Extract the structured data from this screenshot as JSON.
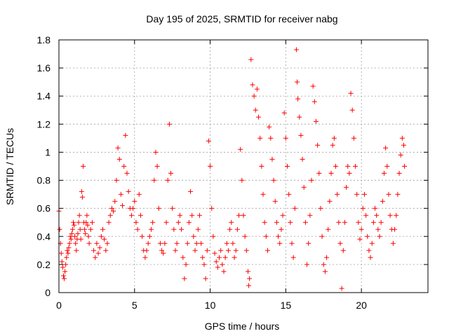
{
  "chart_data": {
    "type": "scatter",
    "title": "Day 195 of 2025, SRMTID for receiver nabg",
    "xlabel": "GPS time / hours",
    "ylabel": "SRMTID / TECUs",
    "xlim": [
      0,
      24.4
    ],
    "ylim": [
      0,
      1.8
    ],
    "xticks": [
      0,
      5,
      10,
      15,
      20
    ],
    "xtick_labels": [
      "0",
      "5",
      "10",
      "15",
      "20"
    ],
    "yticks": [
      0,
      0.2,
      0.4,
      0.6,
      0.8,
      1,
      1.2,
      1.4,
      1.6,
      1.8
    ],
    "ytick_labels": [
      "0",
      "0.2",
      "0.4",
      "0.6",
      "0.8",
      "1",
      "1.2",
      "1.4",
      "1.6",
      "1.8"
    ],
    "grid": true,
    "marker": "+",
    "color": "#ff0000",
    "series": [
      {
        "name": "SRMTID",
        "points": [
          [
            0.0,
            0.58
          ],
          [
            0.05,
            0.45
          ],
          [
            0.1,
            0.35
          ],
          [
            0.15,
            0.28
          ],
          [
            0.2,
            0.22
          ],
          [
            0.25,
            0.18
          ],
          [
            0.3,
            0.12
          ],
          [
            0.35,
            0.1
          ],
          [
            0.4,
            0.15
          ],
          [
            0.45,
            0.2
          ],
          [
            0.5,
            0.25
          ],
          [
            0.55,
            0.3
          ],
          [
            0.6,
            0.28
          ],
          [
            0.65,
            0.32
          ],
          [
            0.7,
            0.35
          ],
          [
            0.75,
            0.4
          ],
          [
            0.8,
            0.38
          ],
          [
            0.85,
            0.42
          ],
          [
            0.9,
            0.45
          ],
          [
            0.95,
            0.5
          ],
          [
            1.0,
            0.48
          ],
          [
            1.05,
            0.4
          ],
          [
            1.1,
            0.35
          ],
          [
            1.15,
            0.3
          ],
          [
            1.2,
            0.38
          ],
          [
            1.25,
            0.42
          ],
          [
            1.3,
            0.5
          ],
          [
            1.35,
            0.55
          ],
          [
            1.4,
            0.45
          ],
          [
            1.45,
            0.38
          ],
          [
            1.5,
            0.72
          ],
          [
            1.55,
            0.68
          ],
          [
            1.6,
            0.9
          ],
          [
            1.65,
            0.5
          ],
          [
            1.7,
            0.45
          ],
          [
            1.75,
            0.42
          ],
          [
            1.8,
            0.5
          ],
          [
            1.85,
            0.55
          ],
          [
            1.9,
            0.48
          ],
          [
            1.95,
            0.4
          ],
          [
            2.0,
            0.35
          ],
          [
            2.1,
            0.45
          ],
          [
            2.2,
            0.5
          ],
          [
            2.3,
            0.3
          ],
          [
            2.4,
            0.25
          ],
          [
            2.5,
            0.35
          ],
          [
            2.6,
            0.28
          ],
          [
            2.7,
            0.32
          ],
          [
            2.8,
            0.4
          ],
          [
            2.9,
            0.45
          ],
          [
            3.0,
            0.38
          ],
          [
            3.1,
            0.3
          ],
          [
            3.2,
            0.35
          ],
          [
            3.3,
            0.5
          ],
          [
            3.4,
            0.55
          ],
          [
            3.5,
            0.6
          ],
          [
            3.6,
            0.58
          ],
          [
            3.7,
            0.65
          ],
          [
            3.8,
            0.8
          ],
          [
            3.9,
            1.03
          ],
          [
            4.0,
            0.95
          ],
          [
            4.1,
            0.7
          ],
          [
            4.2,
            0.62
          ],
          [
            4.3,
            0.9
          ],
          [
            4.4,
            1.12
          ],
          [
            4.5,
            0.85
          ],
          [
            4.6,
            0.72
          ],
          [
            4.7,
            0.6
          ],
          [
            4.8,
            0.55
          ],
          [
            4.9,
            0.6
          ],
          [
            5.0,
            0.65
          ],
          [
            5.1,
            0.5
          ],
          [
            5.2,
            0.45
          ],
          [
            5.3,
            0.7
          ],
          [
            5.4,
            0.55
          ],
          [
            5.5,
            0.4
          ],
          [
            5.6,
            0.3
          ],
          [
            5.7,
            0.25
          ],
          [
            5.8,
            0.3
          ],
          [
            5.9,
            0.35
          ],
          [
            6.0,
            0.4
          ],
          [
            6.1,
            0.45
          ],
          [
            6.2,
            0.5
          ],
          [
            6.3,
            0.8
          ],
          [
            6.4,
            1.0
          ],
          [
            6.5,
            0.9
          ],
          [
            6.6,
            0.6
          ],
          [
            6.7,
            0.35
          ],
          [
            6.8,
            0.3
          ],
          [
            6.9,
            0.28
          ],
          [
            7.0,
            0.35
          ],
          [
            7.1,
            0.5
          ],
          [
            7.2,
            0.8
          ],
          [
            7.3,
            1.2
          ],
          [
            7.4,
            0.85
          ],
          [
            7.5,
            0.6
          ],
          [
            7.6,
            0.45
          ],
          [
            7.7,
            0.3
          ],
          [
            7.8,
            0.35
          ],
          [
            7.9,
            0.5
          ],
          [
            8.0,
            0.55
          ],
          [
            8.1,
            0.45
          ],
          [
            8.2,
            0.25
          ],
          [
            8.3,
            0.1
          ],
          [
            8.4,
            0.2
          ],
          [
            8.5,
            0.35
          ],
          [
            8.6,
            0.5
          ],
          [
            8.7,
            0.72
          ],
          [
            8.8,
            0.55
          ],
          [
            8.9,
            0.4
          ],
          [
            9.0,
            0.3
          ],
          [
            9.1,
            0.35
          ],
          [
            9.2,
            0.45
          ],
          [
            9.3,
            0.55
          ],
          [
            9.4,
            0.35
          ],
          [
            9.5,
            0.25
          ],
          [
            9.6,
            0.2
          ],
          [
            9.7,
            0.1
          ],
          [
            9.8,
            0.3
          ],
          [
            9.9,
            1.08
          ],
          [
            10.0,
            0.9
          ],
          [
            10.1,
            0.6
          ],
          [
            10.2,
            0.4
          ],
          [
            10.3,
            0.28
          ],
          [
            10.4,
            0.22
          ],
          [
            10.5,
            0.18
          ],
          [
            10.6,
            0.25
          ],
          [
            10.7,
            0.3
          ],
          [
            10.8,
            0.2
          ],
          [
            10.9,
            0.15
          ],
          [
            11.0,
            0.25
          ],
          [
            11.1,
            0.35
          ],
          [
            11.2,
            0.3
          ],
          [
            11.3,
            0.45
          ],
          [
            11.4,
            0.5
          ],
          [
            11.5,
            0.35
          ],
          [
            11.6,
            0.25
          ],
          [
            11.7,
            0.3
          ],
          [
            11.8,
            0.45
          ],
          [
            11.9,
            0.55
          ],
          [
            12.0,
            1.02
          ],
          [
            12.1,
            0.8
          ],
          [
            12.2,
            0.55
          ],
          [
            12.3,
            0.4
          ],
          [
            12.4,
            0.3
          ],
          [
            12.5,
            0.15
          ],
          [
            12.55,
            0.05
          ],
          [
            12.6,
            0.1
          ],
          [
            12.7,
            1.66
          ],
          [
            12.8,
            1.48
          ],
          [
            12.9,
            1.4
          ],
          [
            13.0,
            1.3
          ],
          [
            13.1,
            1.45
          ],
          [
            13.2,
            1.25
          ],
          [
            13.3,
            1.1
          ],
          [
            13.4,
            0.9
          ],
          [
            13.5,
            0.7
          ],
          [
            13.6,
            0.5
          ],
          [
            13.7,
            0.4
          ],
          [
            13.8,
            0.3
          ],
          [
            13.9,
            1.18
          ],
          [
            14.0,
            1.1
          ],
          [
            14.1,
            0.95
          ],
          [
            14.2,
            0.8
          ],
          [
            14.3,
            0.65
          ],
          [
            14.4,
            0.5
          ],
          [
            14.5,
            0.4
          ],
          [
            14.6,
            0.35
          ],
          [
            14.7,
            0.45
          ],
          [
            14.8,
            0.55
          ],
          [
            14.9,
            1.28
          ],
          [
            15.0,
            1.1
          ],
          [
            15.1,
            0.9
          ],
          [
            15.2,
            0.7
          ],
          [
            15.3,
            0.5
          ],
          [
            15.4,
            0.35
          ],
          [
            15.5,
            0.25
          ],
          [
            15.6,
            0.6
          ],
          [
            15.7,
            1.73
          ],
          [
            15.75,
            1.5
          ],
          [
            15.8,
            1.38
          ],
          [
            15.9,
            1.25
          ],
          [
            16.0,
            1.12
          ],
          [
            16.1,
            0.95
          ],
          [
            16.2,
            0.75
          ],
          [
            16.3,
            0.5
          ],
          [
            16.4,
            0.2
          ],
          [
            16.5,
            0.35
          ],
          [
            16.6,
            0.55
          ],
          [
            16.7,
            0.8
          ],
          [
            16.8,
            1.47
          ],
          [
            16.9,
            1.36
          ],
          [
            17.0,
            1.22
          ],
          [
            17.1,
            1.05
          ],
          [
            17.2,
            0.85
          ],
          [
            17.3,
            0.6
          ],
          [
            17.4,
            0.4
          ],
          [
            17.5,
            0.2
          ],
          [
            17.6,
            0.15
          ],
          [
            17.7,
            0.25
          ],
          [
            17.8,
            0.45
          ],
          [
            17.9,
            0.65
          ],
          [
            18.0,
            0.85
          ],
          [
            18.1,
            1.05
          ],
          [
            18.2,
            1.1
          ],
          [
            18.3,
            0.9
          ],
          [
            18.4,
            0.7
          ],
          [
            18.5,
            0.5
          ],
          [
            18.6,
            0.35
          ],
          [
            18.7,
            0.03
          ],
          [
            18.8,
            0.3
          ],
          [
            18.9,
            0.5
          ],
          [
            19.0,
            0.75
          ],
          [
            19.1,
            0.9
          ],
          [
            19.2,
            0.85
          ],
          [
            19.3,
            1.42
          ],
          [
            19.4,
            1.3
          ],
          [
            19.5,
            1.1
          ],
          [
            19.6,
            0.9
          ],
          [
            19.7,
            0.7
          ],
          [
            19.8,
            0.5
          ],
          [
            19.9,
            0.38
          ],
          [
            20.0,
            0.45
          ],
          [
            20.1,
            0.6
          ],
          [
            20.2,
            0.7
          ],
          [
            20.3,
            0.55
          ],
          [
            20.4,
            0.4
          ],
          [
            20.5,
            0.3
          ],
          [
            20.6,
            0.25
          ],
          [
            20.7,
            0.35
          ],
          [
            20.8,
            0.5
          ],
          [
            20.9,
            0.6
          ],
          [
            21.0,
            0.55
          ],
          [
            21.1,
            0.45
          ],
          [
            21.2,
            0.4
          ],
          [
            21.3,
            0.5
          ],
          [
            21.4,
            0.65
          ],
          [
            21.5,
            0.85
          ],
          [
            21.6,
            1.03
          ],
          [
            21.7,
            0.9
          ],
          [
            21.8,
            0.7
          ],
          [
            21.9,
            0.55
          ],
          [
            22.0,
            0.45
          ],
          [
            22.1,
            0.35
          ],
          [
            22.2,
            0.45
          ],
          [
            22.3,
            0.55
          ],
          [
            22.4,
            0.7
          ],
          [
            22.5,
            0.85
          ],
          [
            22.6,
            0.98
          ],
          [
            22.7,
            1.1
          ],
          [
            22.8,
            1.05
          ],
          [
            22.85,
            0.9
          ]
        ]
      }
    ]
  }
}
